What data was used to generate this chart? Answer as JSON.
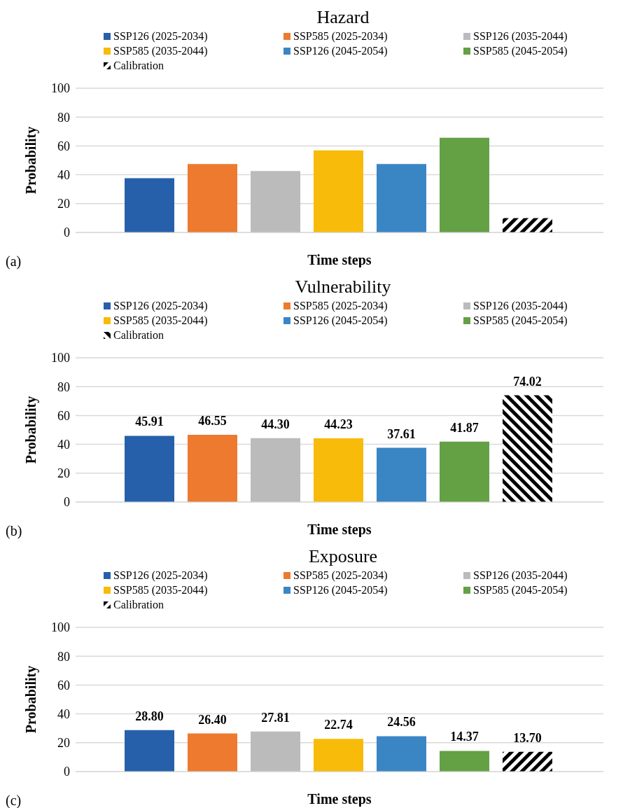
{
  "chart_data": [
    {
      "type": "bar",
      "title": "Hazard",
      "xlabel": "Time steps",
      "ylabel": "Probability",
      "categories": [
        null
      ],
      "legend": "top",
      "grid": "y",
      "ylim": [
        0,
        100
      ],
      "yticks": [
        0,
        20,
        40,
        60,
        80,
        100
      ],
      "annotations": [
        "(a)"
      ],
      "series": [
        {
          "name": "SSP126 (2025-2034)",
          "color": "#2660aa",
          "values": [
            37.6
          ]
        },
        {
          "name": "SSP585 (2025-2034)",
          "color": "#ed7a2f",
          "values": [
            47.4
          ]
        },
        {
          "name": "SSP126 (2035-2044)",
          "color": "#bbbbbb",
          "values": [
            42.6
          ]
        },
        {
          "name": "SSP585 (2035-2044)",
          "color": "#f8bb0a",
          "values": [
            56.9
          ]
        },
        {
          "name": "SSP126 (2045-2054)",
          "color": "#3a86c5",
          "values": [
            47.4
          ]
        },
        {
          "name": "SSP585 (2045-2054)",
          "color": "#64a044",
          "values": [
            65.7
          ]
        },
        {
          "name": "Calibration",
          "color": "#000000",
          "values": [
            10.0
          ]
        }
      ]
    },
    {
      "type": "bar",
      "title": "Vulnerability",
      "xlabel": "Time steps",
      "ylabel": "Probability",
      "categories": [
        null
      ],
      "legend": "top",
      "grid": "y",
      "ylim": [
        0,
        100
      ],
      "yticks": [
        0,
        20,
        40,
        60,
        80,
        100
      ],
      "annotations": [
        "(b)"
      ],
      "series": [
        {
          "name": "SSP126 (2025-2034)",
          "color": "#2660aa",
          "values": [
            45.91
          ],
          "value_labels": [
            "45.91"
          ]
        },
        {
          "name": "SSP585 (2025-2034)",
          "color": "#ed7a2f",
          "values": [
            46.55
          ],
          "value_labels": [
            "46.55"
          ]
        },
        {
          "name": "SSP126 (2035-2044)",
          "color": "#bbbbbb",
          "values": [
            44.3
          ],
          "value_labels": [
            "44.30"
          ]
        },
        {
          "name": "SSP585 (2035-2044)",
          "color": "#f8bb0a",
          "values": [
            44.23
          ],
          "value_labels": [
            "44.23"
          ]
        },
        {
          "name": "SSP126 (2045-2054)",
          "color": "#3a86c5",
          "values": [
            37.61
          ],
          "value_labels": [
            "37.61"
          ]
        },
        {
          "name": "SSP585 (2045-2054)",
          "color": "#64a044",
          "values": [
            41.87
          ],
          "value_labels": [
            "41.87"
          ]
        },
        {
          "name": "Calibration",
          "color": "#000000",
          "values": [
            74.02
          ],
          "value_labels": [
            "74.02"
          ]
        }
      ]
    },
    {
      "type": "bar",
      "title": "Exposure",
      "xlabel": "Time steps",
      "ylabel": "Probability",
      "categories": [
        null
      ],
      "legend": "top",
      "grid": "y",
      "ylim": [
        0,
        100
      ],
      "yticks": [
        0,
        20,
        40,
        60,
        80,
        100
      ],
      "annotations": [
        "(c)"
      ],
      "series": [
        {
          "name": "SSP126 (2025-2034)",
          "color": "#2660aa",
          "values": [
            28.8
          ],
          "value_labels": [
            "28.80"
          ]
        },
        {
          "name": "SSP585 (2025-2034)",
          "color": "#ed7a2f",
          "values": [
            26.4
          ],
          "value_labels": [
            "26.40"
          ]
        },
        {
          "name": "SSP126 (2035-2044)",
          "color": "#bbbbbb",
          "values": [
            27.81
          ],
          "value_labels": [
            "27.81"
          ]
        },
        {
          "name": "SSP585 (2035-2044)",
          "color": "#f8bb0a",
          "values": [
            22.74
          ],
          "value_labels": [
            "22.74"
          ]
        },
        {
          "name": "SSP126 (2045-2054)",
          "color": "#3a86c5",
          "values": [
            24.56
          ],
          "value_labels": [
            "24.56"
          ]
        },
        {
          "name": "SSP585 (2045-2054)",
          "color": "#64a044",
          "values": [
            14.37
          ],
          "value_labels": [
            "14.37"
          ]
        },
        {
          "name": "Calibration",
          "color": "#000000",
          "values": [
            13.7
          ],
          "value_labels": [
            "13.70"
          ]
        }
      ]
    }
  ]
}
